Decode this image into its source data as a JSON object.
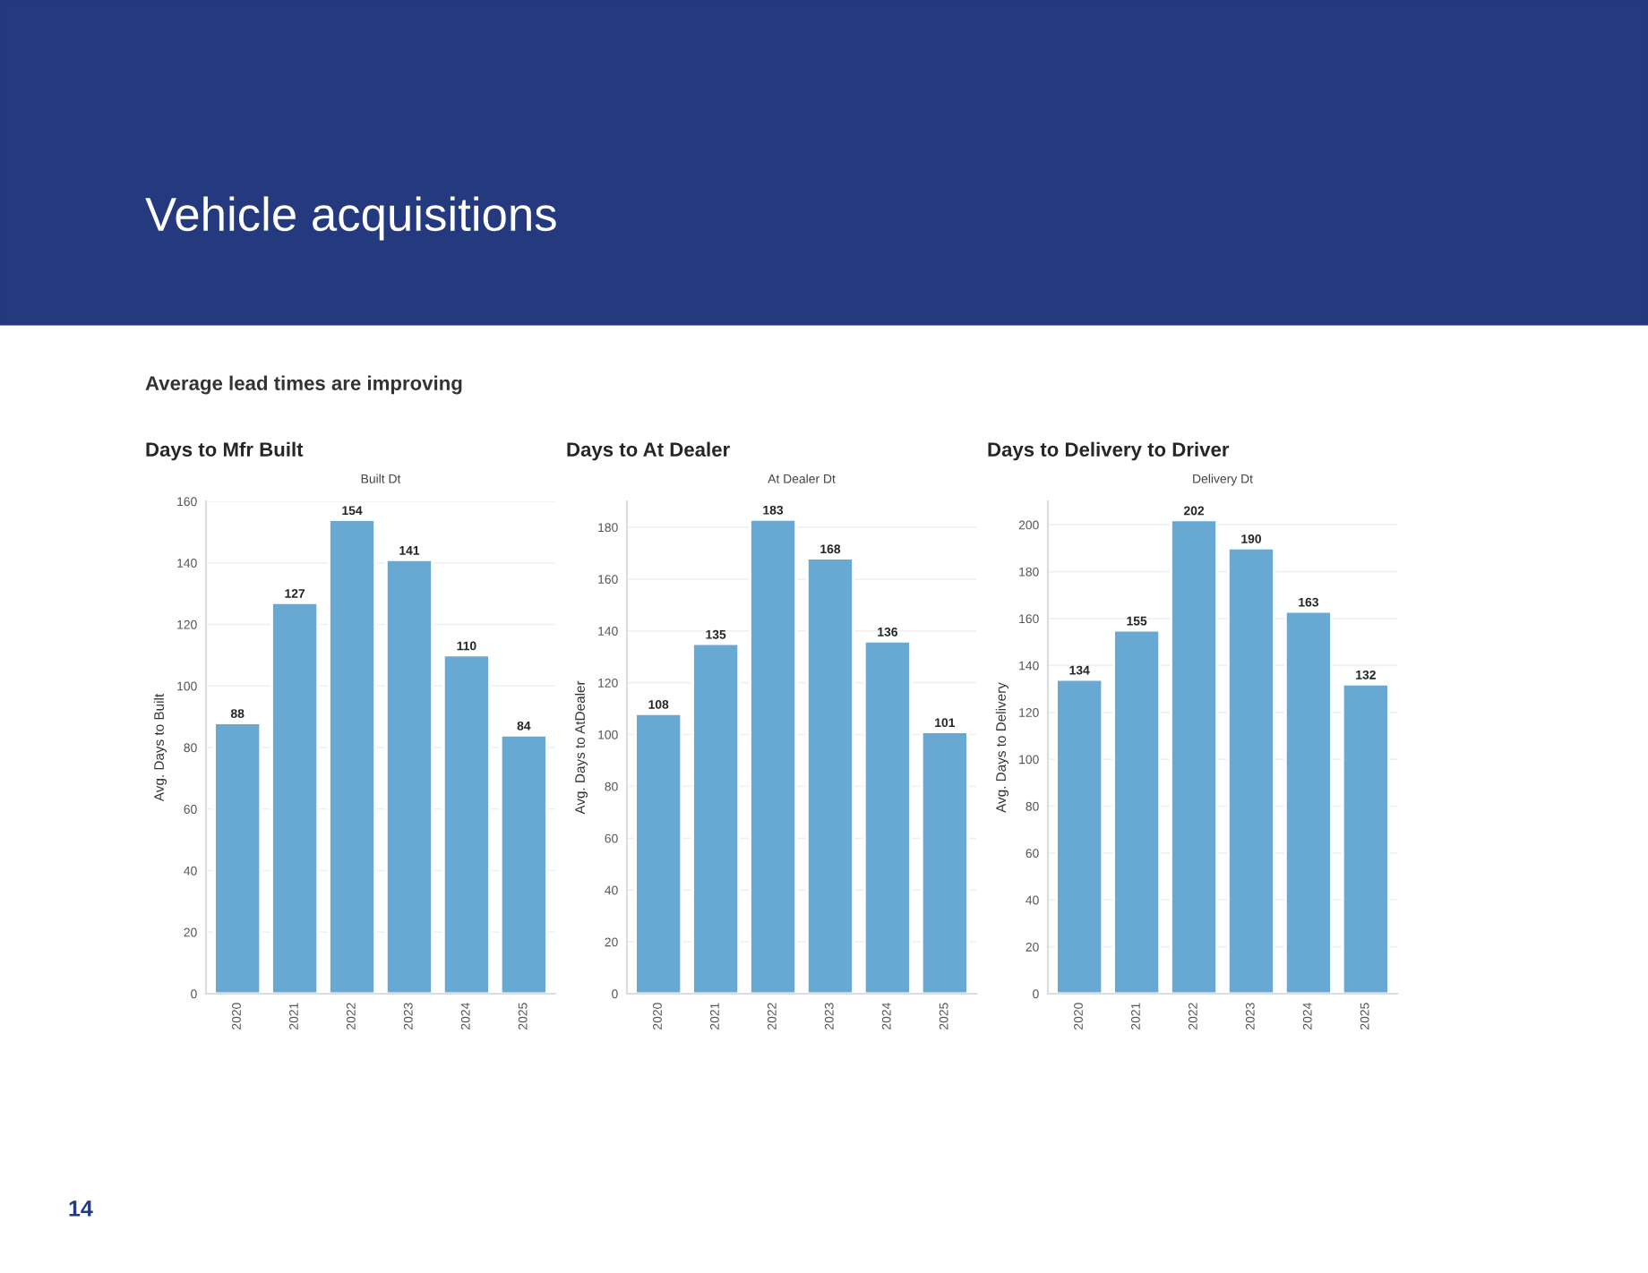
{
  "chart_data": [
    {
      "type": "other",
      "title": "Vehicle acquisitions",
      "subtitle": "Average lead times are improving",
      "annotations": [
        "14"
      ]
    },
    {
      "type": "bar",
      "title": "Days to Mfr Built",
      "subtitle": "Built Dt",
      "ylabel": "Avg. Days to Built",
      "categories": [
        "2020",
        "2021",
        "2022",
        "2023",
        "2024",
        "2025"
      ],
      "values": [
        88,
        127,
        154,
        141,
        110,
        84
      ],
      "color": "#67a9d2",
      "ylim": [
        0,
        160
      ],
      "yticks": [
        0,
        20,
        40,
        60,
        80,
        100,
        120,
        140,
        160
      ],
      "grid": "y",
      "data_labels": true
    },
    {
      "type": "bar",
      "title": "Days to At Dealer",
      "subtitle": "At Dealer Dt",
      "ylabel": "Avg. Days to AtDealer",
      "categories": [
        "2020",
        "2021",
        "2022",
        "2023",
        "2024",
        "2025"
      ],
      "values": [
        108,
        135,
        183,
        168,
        136,
        101
      ],
      "color": "#67a9d2",
      "ylim": [
        0,
        190
      ],
      "yticks": [
        0,
        20,
        40,
        60,
        80,
        100,
        120,
        140,
        160,
        180
      ],
      "grid": "y",
      "data_labels": true
    },
    {
      "type": "bar",
      "title": "Days to Delivery to Driver",
      "subtitle": "Delivery Dt",
      "ylabel": "Avg. Days to Delivery",
      "categories": [
        "2020",
        "2021",
        "2022",
        "2023",
        "2024",
        "2025"
      ],
      "values": [
        134,
        155,
        202,
        190,
        163,
        132
      ],
      "color": "#67a9d2",
      "ylim": [
        0,
        210
      ],
      "yticks": [
        0,
        20,
        40,
        60,
        80,
        100,
        120,
        140,
        160,
        180,
        200
      ],
      "grid": "y",
      "data_labels": true
    }
  ]
}
